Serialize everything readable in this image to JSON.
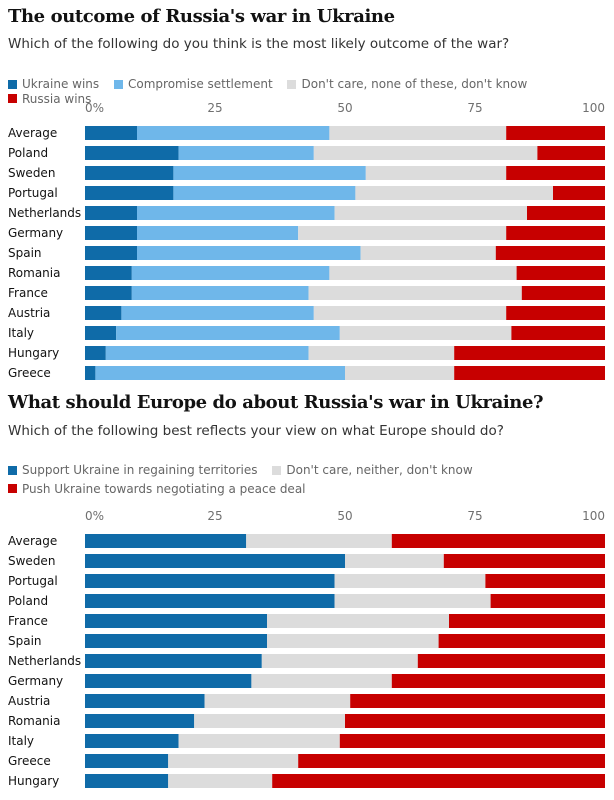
{
  "colors": {
    "ukraine_wins": "#0f6ba8",
    "compromise": "#6fb7ea",
    "dont_know": "#dcdcdc",
    "russia_wins": "#c70000",
    "support_ukraine": "#0f6ba8",
    "push_peace": "#c70000"
  },
  "chart_data": [
    {
      "type": "bar",
      "orientation": "horizontal",
      "stacked": true,
      "title": "The outcome of Russia's war in Ukraine",
      "subtitle": "Which of the following do you think is the most likely outcome of the war?",
      "xlim": [
        0,
        100
      ],
      "xticks": [
        "0%",
        "25",
        "50",
        "75",
        "100"
      ],
      "legend_position": "top",
      "categories": [
        "Average",
        "Poland",
        "Sweden",
        "Portugal",
        "Netherlands",
        "Germany",
        "Spain",
        "Romania",
        "France",
        "Austria",
        "Italy",
        "Hungary",
        "Greece"
      ],
      "series": [
        {
          "name": "Ukraine wins",
          "color": "#0f6ba8",
          "values": [
            10,
            18,
            17,
            17,
            10,
            10,
            10,
            9,
            9,
            7,
            6,
            4,
            2
          ]
        },
        {
          "name": "Compromise settlement",
          "color": "#6fb7ea",
          "values": [
            37,
            26,
            37,
            35,
            38,
            31,
            43,
            38,
            34,
            37,
            43,
            39,
            48
          ]
        },
        {
          "name": "Don't care, none of these, don't know",
          "color": "#dcdcdc",
          "values": [
            34,
            43,
            27,
            38,
            37,
            40,
            26,
            36,
            41,
            37,
            33,
            28,
            21
          ]
        },
        {
          "name": "Russia wins",
          "color": "#c70000",
          "values": [
            19,
            13,
            19,
            10,
            15,
            19,
            21,
            17,
            16,
            19,
            18,
            29,
            29
          ]
        }
      ]
    },
    {
      "type": "bar",
      "orientation": "horizontal",
      "stacked": true,
      "title": "What should Europe do about Russia's war in Ukraine?",
      "subtitle": "Which of the following best reflects your view on what Europe should do?",
      "xlim": [
        0,
        100
      ],
      "xticks": [
        "0%",
        "25",
        "50",
        "75",
        "100"
      ],
      "legend_position": "top",
      "categories": [
        "Average",
        "Sweden",
        "Portugal",
        "Poland",
        "France",
        "Spain",
        "Netherlands",
        "Germany",
        "Austria",
        "Romania",
        "Italy",
        "Greece",
        "Hungary"
      ],
      "series": [
        {
          "name": "Support Ukraine in regaining territories",
          "color": "#0f6ba8",
          "values": [
            31,
            50,
            48,
            48,
            35,
            35,
            34,
            32,
            23,
            21,
            18,
            16,
            16
          ]
        },
        {
          "name": "Don't care, neither, don't know",
          "color": "#dcdcdc",
          "values": [
            28,
            19,
            29,
            30,
            35,
            33,
            30,
            27,
            28,
            29,
            31,
            25,
            20
          ]
        },
        {
          "name": "Push Ukraine towards negotiating a peace deal",
          "color": "#c70000",
          "values": [
            41,
            31,
            23,
            22,
            30,
            32,
            36,
            41,
            49,
            50,
            51,
            59,
            64
          ]
        }
      ]
    }
  ]
}
